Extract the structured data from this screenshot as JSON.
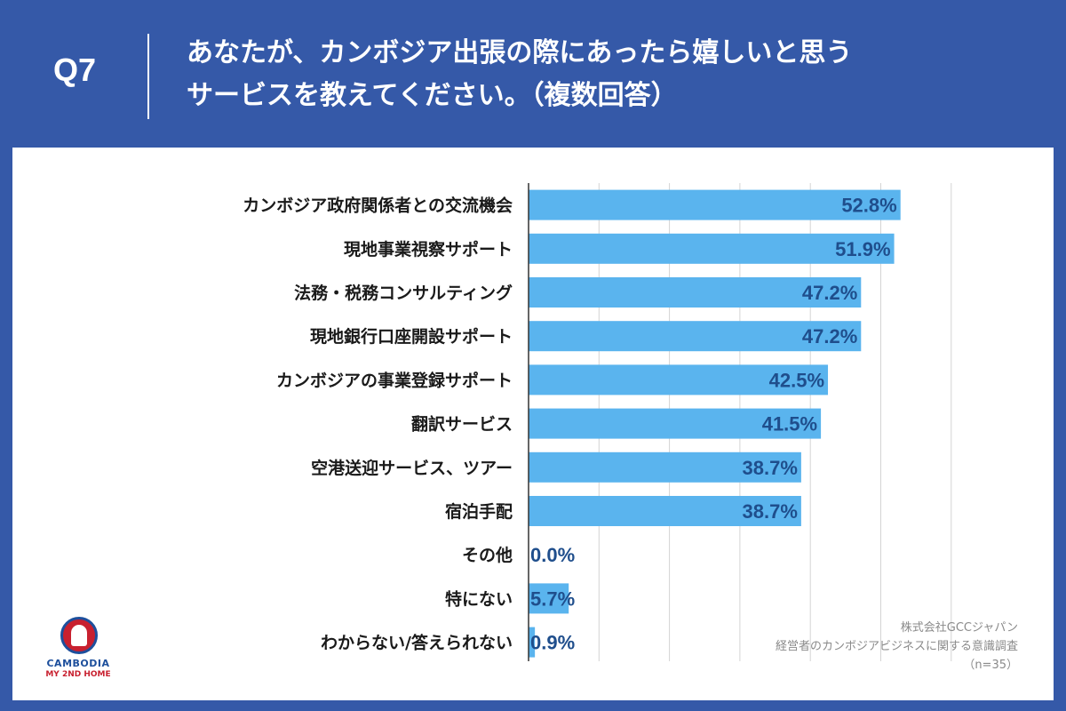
{
  "header": {
    "question_number": "Q7",
    "title_line1": "あなたが、カンボジア出張の際にあったら嬉しいと思う",
    "title_line2": "サービスを教えてください。（複数回答）"
  },
  "chart_data": {
    "type": "bar",
    "orientation": "horizontal",
    "categories": [
      "カンボジア政府関係者との交流機会",
      "現地事業視察サポート",
      "法務・税務コンサルティング",
      "現地銀行口座開設サポート",
      "カンボジアの事業登録サポート",
      "翻訳サービス",
      "空港送迎サービス、ツアー",
      "宿泊手配",
      "その他",
      "特にない",
      "わからない/答えられない"
    ],
    "values": [
      52.8,
      51.9,
      47.2,
      47.2,
      42.5,
      41.5,
      38.7,
      38.7,
      0.0,
      5.7,
      0.9
    ],
    "value_labels": [
      "52.8%",
      "51.9%",
      "47.2%",
      "47.2%",
      "42.5%",
      "41.5%",
      "38.7%",
      "38.7%",
      "0.0%",
      "5.7%",
      "0.9%"
    ],
    "xlim": [
      0,
      60
    ],
    "grid": true,
    "bar_color": "#5ab4ee"
  },
  "source": {
    "line1": "株式会社GCCジャパン",
    "line2": "経営者のカンボジアビジネスに関する意識調査",
    "line3": "（n=35）"
  },
  "logo": {
    "text1": "CAMBODIA",
    "text2": "MY 2ND HOME"
  }
}
